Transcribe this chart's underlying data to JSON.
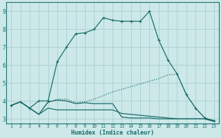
{
  "xlabel": "Humidex (Indice chaleur)",
  "bg_color": "#cce8e8",
  "grid_color": "#aacece",
  "line_color": "#1a6b6b",
  "xlim_min": 0.5,
  "xlim_max": 23.5,
  "ylim_min": 2.75,
  "ylim_max": 9.5,
  "xticks": [
    1,
    2,
    3,
    4,
    5,
    6,
    7,
    8,
    9,
    10,
    11,
    12,
    13,
    14,
    15,
    16,
    17,
    18,
    19,
    20,
    21,
    22,
    23
  ],
  "yticks": [
    3,
    4,
    5,
    6,
    7,
    8,
    9
  ],
  "curve_peak_x": [
    1,
    2,
    3,
    4,
    5,
    6,
    7,
    8,
    9,
    10,
    11,
    12,
    13,
    14,
    15,
    16,
    17,
    18,
    19,
    20,
    21,
    22,
    23
  ],
  "curve_peak_y": [
    3.75,
    3.95,
    3.6,
    4.0,
    4.0,
    6.2,
    7.0,
    7.75,
    7.8,
    8.0,
    8.65,
    8.5,
    8.45,
    8.45,
    8.45,
    9.0,
    7.4,
    6.3,
    5.5,
    4.35,
    3.6,
    3.05,
    2.9
  ],
  "curve_diag_x": [
    1,
    2,
    3,
    4,
    5,
    6,
    7,
    8,
    9,
    10,
    11,
    12,
    13,
    14,
    15,
    16,
    17,
    18,
    19,
    20,
    21,
    22,
    23
  ],
  "curve_diag_y": [
    3.75,
    3.95,
    3.6,
    3.25,
    3.9,
    4.1,
    4.1,
    3.9,
    3.95,
    4.1,
    4.3,
    4.5,
    4.65,
    4.8,
    4.95,
    5.1,
    5.25,
    5.45,
    5.5,
    4.35,
    3.6,
    3.05,
    2.9
  ],
  "curve_flat_x": [
    1,
    2,
    3,
    4,
    5,
    6,
    7,
    8,
    9,
    10,
    11,
    12,
    13,
    14,
    15,
    16,
    17,
    18,
    19,
    20,
    21,
    22,
    23
  ],
  "curve_flat_y": [
    3.75,
    3.95,
    3.6,
    3.25,
    3.95,
    4.05,
    4.0,
    3.85,
    3.9,
    3.85,
    3.85,
    3.85,
    3.1,
    3.05,
    3.05,
    3.05,
    3.0,
    3.0,
    3.0,
    3.0,
    3.0,
    3.0,
    2.9
  ],
  "curve_low_x": [
    1,
    2,
    3,
    4,
    5,
    6,
    7,
    8,
    9,
    10,
    11,
    12,
    13,
    14,
    15,
    16,
    17,
    18,
    19,
    20,
    21,
    22,
    23
  ],
  "curve_low_y": [
    3.75,
    3.95,
    3.6,
    3.25,
    3.6,
    3.5,
    3.5,
    3.5,
    3.5,
    3.5,
    3.5,
    3.5,
    3.3,
    3.25,
    3.2,
    3.15,
    3.1,
    3.05,
    3.0,
    3.0,
    3.0,
    3.0,
    2.85
  ]
}
